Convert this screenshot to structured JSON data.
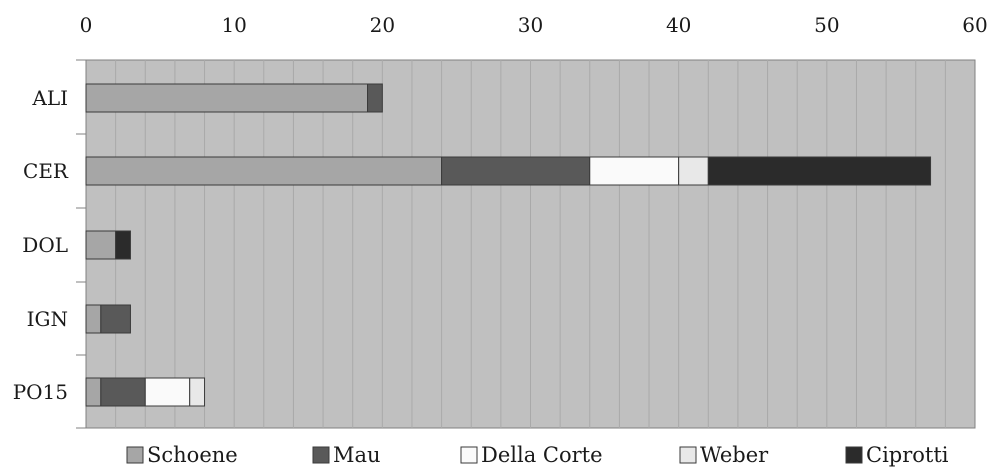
{
  "chart_data": {
    "type": "bar",
    "orientation": "horizontal",
    "stacked": true,
    "categories": [
      "ALI",
      "CER",
      "DOL",
      "IGN",
      "PO15"
    ],
    "series": [
      {
        "name": "Schoene",
        "color": "#a6a6a6",
        "values": [
          19,
          24,
          2,
          1,
          1
        ]
      },
      {
        "name": "Mau",
        "color": "#595959",
        "values": [
          1,
          10,
          0,
          2,
          3
        ]
      },
      {
        "name": "Della Corte",
        "color": "#fafafa",
        "values": [
          0,
          6,
          0,
          0,
          3
        ]
      },
      {
        "name": "Weber",
        "color": "#e8e8e8",
        "values": [
          0,
          2,
          0,
          0,
          1
        ]
      },
      {
        "name": "Ciprotti",
        "color": "#2b2b2b",
        "values": [
          0,
          15,
          1,
          0,
          0
        ]
      }
    ],
    "xlim": [
      0,
      60
    ],
    "xticks": [
      "0",
      "10",
      "20",
      "30",
      "40",
      "50",
      "60"
    ],
    "xaxis_position": "top",
    "grid": "vertical",
    "plot_background": "#c0c0c0",
    "legend_position": "bottom"
  }
}
